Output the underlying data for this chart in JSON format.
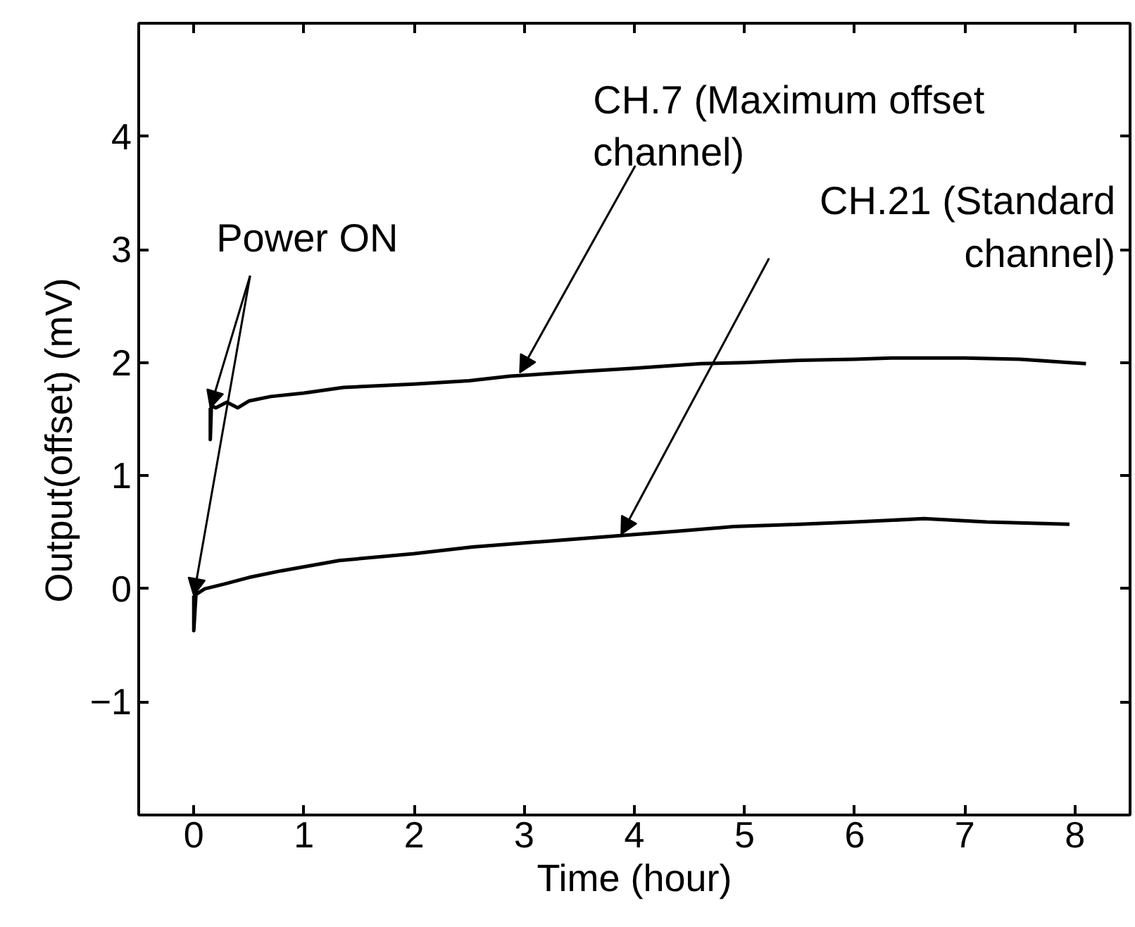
{
  "chart_data": {
    "type": "line",
    "xlabel": "Time (hour)",
    "ylabel": "Output(offset)     (mV)",
    "xlim": [
      -0.5,
      8.5
    ],
    "ylim": [
      -2,
      5
    ],
    "xticks": [
      0,
      1,
      2,
      3,
      4,
      5,
      6,
      7,
      8
    ],
    "yticks": [
      -1,
      0,
      1,
      2,
      3,
      4
    ],
    "grid": false,
    "series": [
      {
        "color": "#000000",
        "x": [
          0.15,
          0.15,
          0.16,
          0.2,
          0.3,
          0.4,
          0.5,
          0.7,
          1.0,
          1.36,
          2.0,
          2.5,
          2.87,
          3.5,
          4.0,
          4.6,
          5.0,
          5.5,
          6.0,
          6.33,
          7.0,
          7.5,
          8.1
        ],
        "values": [
          1.6,
          1.32,
          1.62,
          1.6,
          1.65,
          1.6,
          1.66,
          1.7,
          1.73,
          1.78,
          1.81,
          1.84,
          1.88,
          1.92,
          1.95,
          1.99,
          2.0,
          2.02,
          2.03,
          2.04,
          2.04,
          2.03,
          1.99
        ]
      },
      {
        "color": "#000000",
        "x": [
          0.0,
          0.0,
          0.02,
          0.1,
          0.27,
          0.5,
          0.8,
          1.32,
          2.0,
          2.53,
          3.2,
          3.86,
          4.4,
          4.9,
          5.5,
          6.0,
          6.63,
          7.2,
          7.95
        ],
        "values": [
          -0.06,
          -0.37,
          -0.05,
          0.0,
          0.04,
          0.1,
          0.16,
          0.25,
          0.31,
          0.37,
          0.42,
          0.47,
          0.51,
          0.55,
          0.57,
          0.59,
          0.62,
          0.59,
          0.57
        ]
      }
    ],
    "annotations": [
      {
        "text": "Power ON",
        "x": 0.0,
        "y": -0.06
      },
      {
        "text": "CH.7 (Maximum offset\nchannel)",
        "x": 2.96,
        "y": 1.91
      },
      {
        "text": "CH.21 (Standard\nchannel)",
        "x": 3.88,
        "y": 0.48
      }
    ]
  }
}
